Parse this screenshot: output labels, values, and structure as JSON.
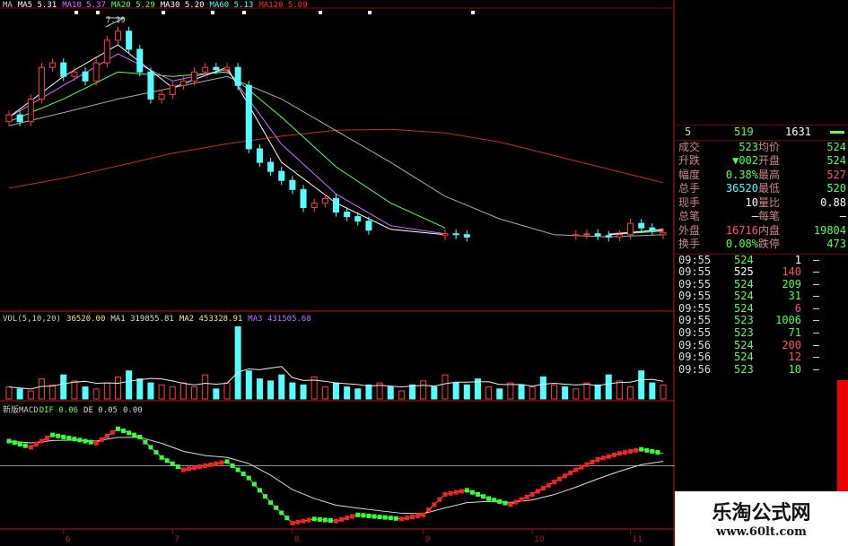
{
  "colors": {
    "up": "#ff3c3c",
    "down": "#54ffff",
    "grid": "#7a1010",
    "ma5": "#ffffff",
    "ma10": "#d070ff",
    "ma20": "#60ff60",
    "ma60": "#9bb5a0",
    "ma120": "#c0301c",
    "green": "#3aff3a",
    "red": "#ff2020"
  },
  "main_header": {
    "ma": "MA",
    "items": [
      {
        "label": "MA5 5.31",
        "color": "#ffffff"
      },
      {
        "label": "MA10 5.37",
        "color": "#d070ff"
      },
      {
        "label": "MA20 5.29",
        "color": "#60ff60"
      },
      {
        "label": "MA30 5.20",
        "color": "#ffffff"
      },
      {
        "label": "MA60 5.13",
        "color": "#54ffff"
      },
      {
        "label": "MA120 5.09",
        "color": "#ff3030"
      }
    ]
  },
  "high_label": "7.39",
  "vol_header": {
    "title": "VOL(5,10,20)",
    "vol": "36520.00",
    "ma1": "MA1 319855.81",
    "ma2": "MA2 453328.91",
    "ma3": "MA3 431505.68"
  },
  "macd_header": {
    "title": "新版MACD",
    "dif": "DIF 0.06",
    "dea": "DE 0.05",
    "macd": "0.00"
  },
  "quote": {
    "top": {
      "label": "5",
      "price": "519",
      "vol": "1631"
    },
    "rows": [
      {
        "l1": "成交",
        "v1": "523",
        "l2": "均价",
        "v2": "524",
        "c1": "#5f5",
        "c2": "#5f5"
      },
      {
        "l1": "升跌",
        "v1": "▼002",
        "l2": "开盘",
        "v2": "524",
        "c1": "#5f5",
        "c2": "#5f5"
      },
      {
        "l1": "幅度",
        "v1": "0.38%",
        "l2": "最高",
        "v2": "527",
        "c1": "#5f5",
        "c2": "#f55"
      },
      {
        "l1": "总手",
        "v1": "36520",
        "l2": "最低",
        "v2": "520",
        "c1": "#5ff",
        "c2": "#5f5"
      },
      {
        "l1": "现手",
        "v1": "10",
        "l2": "量比",
        "v2": "0.88",
        "c1": "#fff",
        "c2": "#fff"
      },
      {
        "l1": "总笔",
        "v1": "—",
        "l2": "每笔",
        "v2": "—",
        "c1": "#fff",
        "c2": "#fff"
      },
      {
        "l1": "外盘",
        "v1": "16716",
        "l2": "内盘",
        "v2": "19804",
        "c1": "#f55",
        "c2": "#5f5"
      },
      {
        "l1": "换手",
        "v1": "0.08%",
        "l2": "跌停",
        "v2": "473",
        "c1": "#5f5",
        "c2": "#5f5"
      }
    ],
    "ticks": [
      {
        "time": "09:55",
        "price": "524",
        "vol": "1",
        "pc": "#5f5",
        "vc": "#fff"
      },
      {
        "time": "09:55",
        "price": "525",
        "vol": "140",
        "pc": "#fff",
        "vc": "#f55"
      },
      {
        "time": "09:55",
        "price": "524",
        "vol": "209",
        "pc": "#5f5",
        "vc": "#5f5"
      },
      {
        "time": "09:55",
        "price": "524",
        "vol": "31",
        "pc": "#5f5",
        "vc": "#5f5"
      },
      {
        "time": "09:55",
        "price": "524",
        "vol": "6",
        "pc": "#5f5",
        "vc": "#f55"
      },
      {
        "time": "09:55",
        "price": "523",
        "vol": "1006",
        "pc": "#5f5",
        "vc": "#5f5"
      },
      {
        "time": "09:55",
        "price": "523",
        "vol": "71",
        "pc": "#5f5",
        "vc": "#5f5"
      },
      {
        "time": "09:56",
        "price": "524",
        "vol": "200",
        "pc": "#5f5",
        "vc": "#f55"
      },
      {
        "time": "09:56",
        "price": "524",
        "vol": "12",
        "pc": "#5f5",
        "vc": "#f55"
      },
      {
        "time": "09:56",
        "price": "523",
        "vol": "10",
        "pc": "#5f5",
        "vc": "#5f5"
      }
    ]
  },
  "watermark": {
    "name": "乐淘公式网",
    "url": "www.60lt.com"
  },
  "chart_data": {
    "type": "candlestick",
    "x_ticks": [
      "6",
      "7",
      "8",
      "9",
      "10",
      "11"
    ],
    "x_tick_index": [
      5,
      15,
      26,
      38,
      48,
      57
    ],
    "price_ylim": [
      0.95,
      7.79
    ],
    "open": [
      5.1,
      5.25,
      5.1,
      5.6,
      6.3,
      6.4,
      6.1,
      6.2,
      6.0,
      6.4,
      6.9,
      7.1,
      6.7,
      6.2,
      5.6,
      5.7,
      5.9,
      6.0,
      6.2,
      6.3,
      6.25,
      6.3,
      5.9,
      4.5,
      4.2,
      4.0,
      3.8,
      3.6,
      3.2,
      3.3,
      3.4,
      3.1,
      3.0,
      2.9,
      null,
      null,
      null,
      null,
      null,
      null,
      2.58,
      2.62,
      2.6,
      null,
      null,
      null,
      null,
      null,
      null,
      null,
      null,
      null,
      2.58,
      2.6,
      2.62,
      2.58,
      2.55,
      2.6,
      2.85,
      2.75,
      2.6
    ],
    "close": [
      5.25,
      5.1,
      5.6,
      6.3,
      6.4,
      6.1,
      6.2,
      6.0,
      6.4,
      6.9,
      7.1,
      6.7,
      6.2,
      5.6,
      5.7,
      5.9,
      6.0,
      6.2,
      6.3,
      6.25,
      6.3,
      5.9,
      4.5,
      4.2,
      4.0,
      3.8,
      3.6,
      3.2,
      3.3,
      3.4,
      3.1,
      3.0,
      2.9,
      2.7,
      null,
      null,
      null,
      null,
      null,
      null,
      2.62,
      2.6,
      2.55,
      null,
      null,
      null,
      null,
      null,
      null,
      null,
      null,
      null,
      2.6,
      2.62,
      2.58,
      2.55,
      2.6,
      2.85,
      2.75,
      2.7,
      2.65
    ],
    "ma_lines": [
      {
        "name": "MA120",
        "color": "#c0301c",
        "values": [
          3.63,
          3.85,
          4.12,
          4.4,
          4.61,
          4.78,
          4.91,
          4.93,
          4.85,
          4.65,
          4.35,
          4.05,
          3.75
        ]
      },
      {
        "name": "MA60",
        "color": "#9bb5a0",
        "values": [
          5.01,
          5.3,
          5.6,
          5.85,
          6.1,
          5.6,
          4.9,
          4.2,
          3.45,
          2.95,
          2.6,
          2.55,
          2.6
        ]
      },
      {
        "name": "MA20",
        "color": "#60ff60",
        "values": [
          5.1,
          5.6,
          6.2,
          6.1,
          6.2,
          5.2,
          4.1,
          3.3,
          2.75,
          null,
          null,
          2.6,
          2.68
        ]
      },
      {
        "name": "MA10",
        "color": "#d070ff",
        "values": [
          5.2,
          5.9,
          6.6,
          6.0,
          6.25,
          4.6,
          3.5,
          2.8,
          2.62,
          null,
          null,
          2.62,
          2.7
        ]
      },
      {
        "name": "MA5",
        "color": "#ffffff",
        "values": [
          5.2,
          6.1,
          6.8,
          5.85,
          6.3,
          4.2,
          3.3,
          2.72,
          2.6,
          null,
          null,
          2.6,
          2.72
        ]
      }
    ],
    "volume": [
      300000,
      250000,
      200000,
      500000,
      350000,
      600000,
      450000,
      300000,
      250000,
      400000,
      550000,
      700000,
      500000,
      400000,
      350000,
      300000,
      400000,
      300000,
      600000,
      250000,
      400000,
      1800000,
      700000,
      500000,
      450000,
      600000,
      400000,
      350000,
      550000,
      300000,
      400000,
      300000,
      250000,
      350000,
      400000,
      300000,
      200000,
      350000,
      450000,
      300000,
      600000,
      400000,
      350000,
      500000,
      300000,
      250000,
      400000,
      350000,
      300000,
      550000,
      350000,
      300000,
      250000,
      400000,
      350000,
      600000,
      450000,
      300000,
      700000,
      400000,
      350000
    ],
    "volume_ylim": [
      0,
      1900000
    ],
    "macd_dif": [
      0.12,
      0.09,
      0.15,
      0.13,
      0.11,
      0.18,
      0.14,
      0.04,
      -0.02,
      0.0,
      0.02,
      -0.06,
      -0.18,
      -0.28,
      -0.26,
      -0.27,
      -0.24,
      -0.25,
      -0.26,
      -0.24,
      -0.14,
      -0.12,
      -0.16,
      -0.19,
      -0.14,
      -0.08,
      -0.02,
      0.03,
      0.06,
      0.08,
      0.06
    ],
    "macd_ylim": [
      -0.3,
      0.26
    ]
  }
}
